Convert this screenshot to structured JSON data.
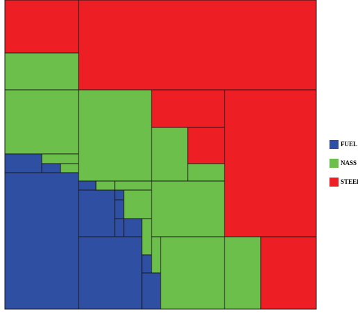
{
  "chart_data": {
    "type": "treemap",
    "series": [
      {
        "name": "FUEL",
        "color": "#2f4fa3"
      },
      {
        "name": "NASS",
        "color": "#6cbf4a"
      },
      {
        "name": "STEEl",
        "color": "#ed1f24"
      }
    ],
    "legend": "right"
  }
}
